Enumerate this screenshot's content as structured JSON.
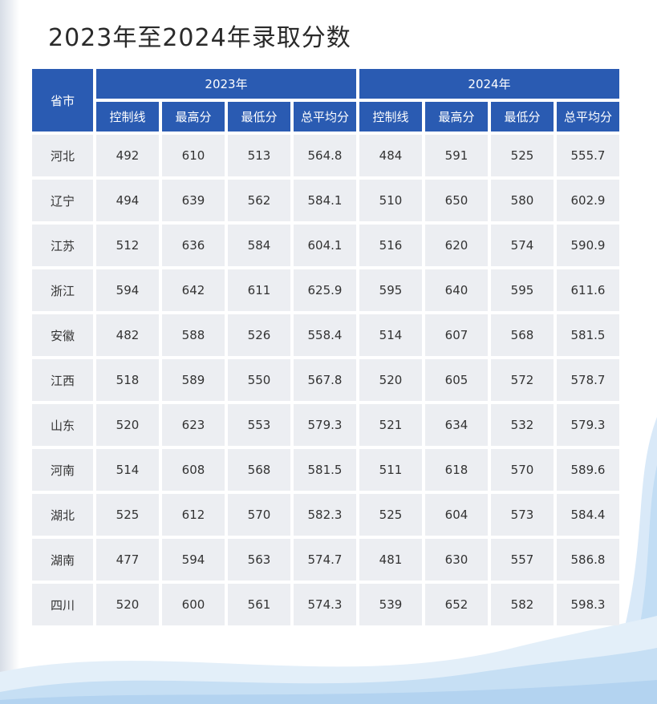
{
  "title": "2023年至2024年录取分数",
  "table": {
    "province_header": "省市",
    "years": [
      "2023年",
      "2024年"
    ],
    "metrics": [
      "控制线",
      "最高分",
      "最低分",
      "总平均分"
    ],
    "rows": [
      {
        "province": "河北",
        "y2023": [
          "492",
          "610",
          "513",
          "564.8"
        ],
        "y2024": [
          "484",
          "591",
          "525",
          "555.7"
        ]
      },
      {
        "province": "辽宁",
        "y2023": [
          "494",
          "639",
          "562",
          "584.1"
        ],
        "y2024": [
          "510",
          "650",
          "580",
          "602.9"
        ]
      },
      {
        "province": "江苏",
        "y2023": [
          "512",
          "636",
          "584",
          "604.1"
        ],
        "y2024": [
          "516",
          "620",
          "574",
          "590.9"
        ]
      },
      {
        "province": "浙江",
        "y2023": [
          "594",
          "642",
          "611",
          "625.9"
        ],
        "y2024": [
          "595",
          "640",
          "595",
          "611.6"
        ]
      },
      {
        "province": "安徽",
        "y2023": [
          "482",
          "588",
          "526",
          "558.4"
        ],
        "y2024": [
          "514",
          "607",
          "568",
          "581.5"
        ]
      },
      {
        "province": "江西",
        "y2023": [
          "518",
          "589",
          "550",
          "567.8"
        ],
        "y2024": [
          "520",
          "605",
          "572",
          "578.7"
        ]
      },
      {
        "province": "山东",
        "y2023": [
          "520",
          "623",
          "553",
          "579.3"
        ],
        "y2024": [
          "521",
          "634",
          "532",
          "579.3"
        ]
      },
      {
        "province": "河南",
        "y2023": [
          "514",
          "608",
          "568",
          "581.5"
        ],
        "y2024": [
          "511",
          "618",
          "570",
          "589.6"
        ]
      },
      {
        "province": "湖北",
        "y2023": [
          "525",
          "612",
          "570",
          "582.3"
        ],
        "y2024": [
          "525",
          "604",
          "573",
          "584.4"
        ]
      },
      {
        "province": "湖南",
        "y2023": [
          "477",
          "594",
          "563",
          "574.7"
        ],
        "y2024": [
          "481",
          "630",
          "557",
          "586.8"
        ]
      },
      {
        "province": "四川",
        "y2023": [
          "520",
          "600",
          "561",
          "574.3"
        ],
        "y2024": [
          "539",
          "652",
          "582",
          "598.3"
        ]
      }
    ]
  },
  "colors": {
    "header_bg": "#2a5bb2",
    "header_text": "#ffffff",
    "cell_bg": "#eceef2",
    "wave": "#bcd8f2"
  }
}
